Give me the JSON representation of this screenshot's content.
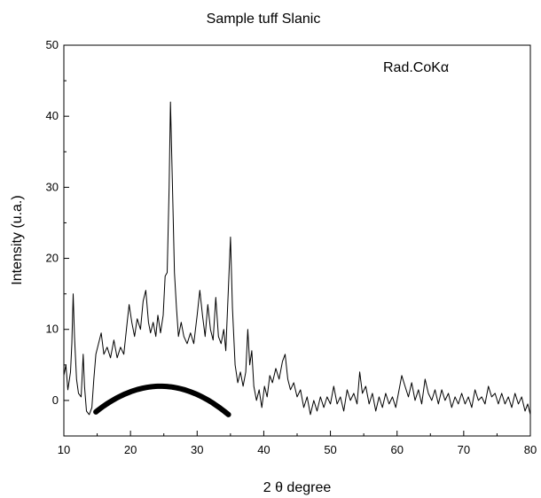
{
  "chart_data": {
    "type": "line",
    "title": "Sample tuff Slanic",
    "xlabel": "2 θ degree",
    "ylabel": "Intensity (u.a.)",
    "annotation": "Rad.CoKα",
    "xlim": [
      10,
      80
    ],
    "ylim": [
      -5,
      50
    ],
    "x_ticks": [
      10,
      20,
      30,
      40,
      50,
      60,
      70,
      80
    ],
    "y_ticks": [
      0,
      10,
      20,
      30,
      40,
      50
    ],
    "grid": false,
    "legend": "none",
    "colors": {
      "line": "#000000",
      "background": "#ffffff"
    },
    "series": [
      {
        "points": [
          [
            10.0,
            3.5
          ],
          [
            10.3,
            5.0
          ],
          [
            10.6,
            1.5
          ],
          [
            11.0,
            4.0
          ],
          [
            11.2,
            8.0
          ],
          [
            11.4,
            15.0
          ],
          [
            11.6,
            9.0
          ],
          [
            11.9,
            3.0
          ],
          [
            12.2,
            1.0
          ],
          [
            12.6,
            0.5
          ],
          [
            12.9,
            6.5
          ],
          [
            13.1,
            2.0
          ],
          [
            13.4,
            -1.5
          ],
          [
            13.8,
            -2.0
          ],
          [
            14.2,
            -1.0
          ],
          [
            14.5,
            3.0
          ],
          [
            14.8,
            6.5
          ],
          [
            15.2,
            8.0
          ],
          [
            15.6,
            9.5
          ],
          [
            16.0,
            6.5
          ],
          [
            16.5,
            7.5
          ],
          [
            17.0,
            6.0
          ],
          [
            17.5,
            8.5
          ],
          [
            18.0,
            6.0
          ],
          [
            18.5,
            7.5
          ],
          [
            19.0,
            6.5
          ],
          [
            19.5,
            11.0
          ],
          [
            19.8,
            13.5
          ],
          [
            20.2,
            11.0
          ],
          [
            20.6,
            9.0
          ],
          [
            21.0,
            11.5
          ],
          [
            21.5,
            10.0
          ],
          [
            21.9,
            14.0
          ],
          [
            22.3,
            15.5
          ],
          [
            22.7,
            11.0
          ],
          [
            23.0,
            9.5
          ],
          [
            23.4,
            11.0
          ],
          [
            23.8,
            9.0
          ],
          [
            24.1,
            12.0
          ],
          [
            24.5,
            9.5
          ],
          [
            24.9,
            12.0
          ],
          [
            25.2,
            17.5
          ],
          [
            25.5,
            18.0
          ],
          [
            25.8,
            30.0
          ],
          [
            26.0,
            42.0
          ],
          [
            26.3,
            30.0
          ],
          [
            26.6,
            18.0
          ],
          [
            26.9,
            13.0
          ],
          [
            27.2,
            9.0
          ],
          [
            27.6,
            11.0
          ],
          [
            28.0,
            9.0
          ],
          [
            28.5,
            8.0
          ],
          [
            29.0,
            9.5
          ],
          [
            29.5,
            8.0
          ],
          [
            30.0,
            12.0
          ],
          [
            30.4,
            15.5
          ],
          [
            30.8,
            12.0
          ],
          [
            31.2,
            9.0
          ],
          [
            31.6,
            13.5
          ],
          [
            32.0,
            10.0
          ],
          [
            32.4,
            8.5
          ],
          [
            32.8,
            14.5
          ],
          [
            33.2,
            9.0
          ],
          [
            33.6,
            8.0
          ],
          [
            34.0,
            10.0
          ],
          [
            34.3,
            7.0
          ],
          [
            34.7,
            16.0
          ],
          [
            35.0,
            23.0
          ],
          [
            35.3,
            13.0
          ],
          [
            35.7,
            5.0
          ],
          [
            36.1,
            2.5
          ],
          [
            36.5,
            4.0
          ],
          [
            36.9,
            2.0
          ],
          [
            37.3,
            4.0
          ],
          [
            37.6,
            10.0
          ],
          [
            37.9,
            5.0
          ],
          [
            38.2,
            7.0
          ],
          [
            38.5,
            2.0
          ],
          [
            38.9,
            0.0
          ],
          [
            39.3,
            1.5
          ],
          [
            39.7,
            -1.0
          ],
          [
            40.1,
            2.0
          ],
          [
            40.5,
            0.5
          ],
          [
            40.9,
            3.5
          ],
          [
            41.3,
            2.5
          ],
          [
            41.8,
            4.5
          ],
          [
            42.3,
            3.0
          ],
          [
            42.8,
            5.5
          ],
          [
            43.2,
            6.5
          ],
          [
            43.6,
            3.0
          ],
          [
            44.0,
            1.5
          ],
          [
            44.5,
            2.5
          ],
          [
            45.0,
            0.5
          ],
          [
            45.5,
            1.5
          ],
          [
            46.0,
            -1.0
          ],
          [
            46.5,
            0.5
          ],
          [
            47.0,
            -2.0
          ],
          [
            47.5,
            0.0
          ],
          [
            48.0,
            -1.5
          ],
          [
            48.5,
            0.5
          ],
          [
            49.0,
            -1.0
          ],
          [
            49.5,
            0.5
          ],
          [
            50.0,
            -0.5
          ],
          [
            50.5,
            2.0
          ],
          [
            51.0,
            -0.5
          ],
          [
            51.5,
            0.5
          ],
          [
            52.0,
            -1.5
          ],
          [
            52.5,
            1.5
          ],
          [
            53.0,
            0.0
          ],
          [
            53.5,
            1.0
          ],
          [
            54.0,
            -0.5
          ],
          [
            54.4,
            4.0
          ],
          [
            54.8,
            1.0
          ],
          [
            55.3,
            2.0
          ],
          [
            55.8,
            -0.5
          ],
          [
            56.3,
            1.0
          ],
          [
            56.8,
            -1.5
          ],
          [
            57.3,
            0.5
          ],
          [
            57.8,
            -1.0
          ],
          [
            58.3,
            1.0
          ],
          [
            58.8,
            -0.5
          ],
          [
            59.3,
            0.5
          ],
          [
            59.8,
            -1.0
          ],
          [
            60.3,
            1.5
          ],
          [
            60.7,
            3.5
          ],
          [
            61.2,
            2.0
          ],
          [
            61.7,
            0.5
          ],
          [
            62.2,
            2.5
          ],
          [
            62.7,
            0.0
          ],
          [
            63.2,
            1.5
          ],
          [
            63.7,
            -0.5
          ],
          [
            64.2,
            3.0
          ],
          [
            64.7,
            1.0
          ],
          [
            65.2,
            0.0
          ],
          [
            65.7,
            1.5
          ],
          [
            66.2,
            -0.5
          ],
          [
            66.7,
            1.5
          ],
          [
            67.2,
            0.0
          ],
          [
            67.7,
            1.0
          ],
          [
            68.2,
            -1.0
          ],
          [
            68.7,
            0.5
          ],
          [
            69.2,
            -0.5
          ],
          [
            69.7,
            1.0
          ],
          [
            70.2,
            -0.5
          ],
          [
            70.7,
            0.5
          ],
          [
            71.2,
            -1.0
          ],
          [
            71.7,
            1.5
          ],
          [
            72.2,
            0.0
          ],
          [
            72.7,
            0.5
          ],
          [
            73.2,
            -0.5
          ],
          [
            73.7,
            2.0
          ],
          [
            74.2,
            0.5
          ],
          [
            74.7,
            1.0
          ],
          [
            75.2,
            -0.5
          ],
          [
            75.7,
            1.0
          ],
          [
            76.2,
            -0.5
          ],
          [
            76.7,
            0.5
          ],
          [
            77.2,
            -1.0
          ],
          [
            77.7,
            1.0
          ],
          [
            78.2,
            -0.5
          ],
          [
            78.7,
            0.5
          ],
          [
            79.2,
            -1.5
          ],
          [
            79.6,
            -0.5
          ],
          [
            80.0,
            -2.0
          ]
        ]
      }
    ],
    "amorphous_hump": {
      "x_range": [
        14.8,
        34.7
      ],
      "center": 24.5,
      "peak": 2.0,
      "ends": -2.0
    }
  }
}
